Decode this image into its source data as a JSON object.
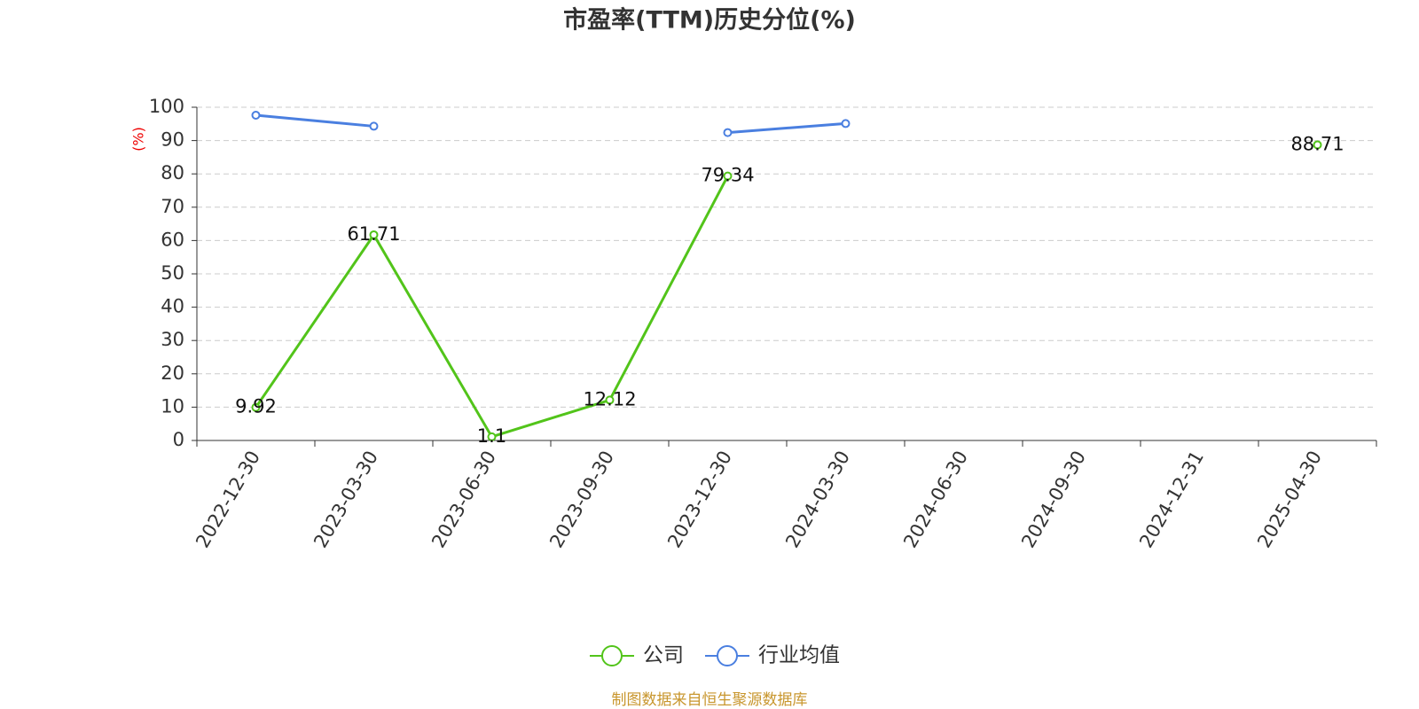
{
  "chart_data": {
    "type": "line",
    "title": "市盈率(TTM)历史分位(%)",
    "y_label": "(%)",
    "source": "制图数据来自恒生聚源数据库",
    "categories": [
      "2022-12-30",
      "2023-03-30",
      "2023-06-30",
      "2023-09-30",
      "2023-12-30",
      "2024-03-30",
      "2024-06-30",
      "2024-09-30",
      "2024-12-31",
      "2025-04-30"
    ],
    "series": [
      {
        "name": "公司",
        "color": "#52c41a",
        "values": [
          9.92,
          61.71,
          1.1,
          12.12,
          79.34,
          null,
          null,
          null,
          null,
          88.71
        ],
        "data_labels": true
      },
      {
        "name": "行业均值",
        "color": "#4a7fe0",
        "values": [
          97.6,
          94.3,
          null,
          null,
          92.4,
          95.1,
          null,
          null,
          null,
          null
        ],
        "data_labels": false
      }
    ],
    "ylim": [
      0,
      100
    ],
    "yticks": [
      0,
      10,
      20,
      30,
      40,
      50,
      60,
      70,
      80,
      90,
      100
    ],
    "grid": true
  }
}
